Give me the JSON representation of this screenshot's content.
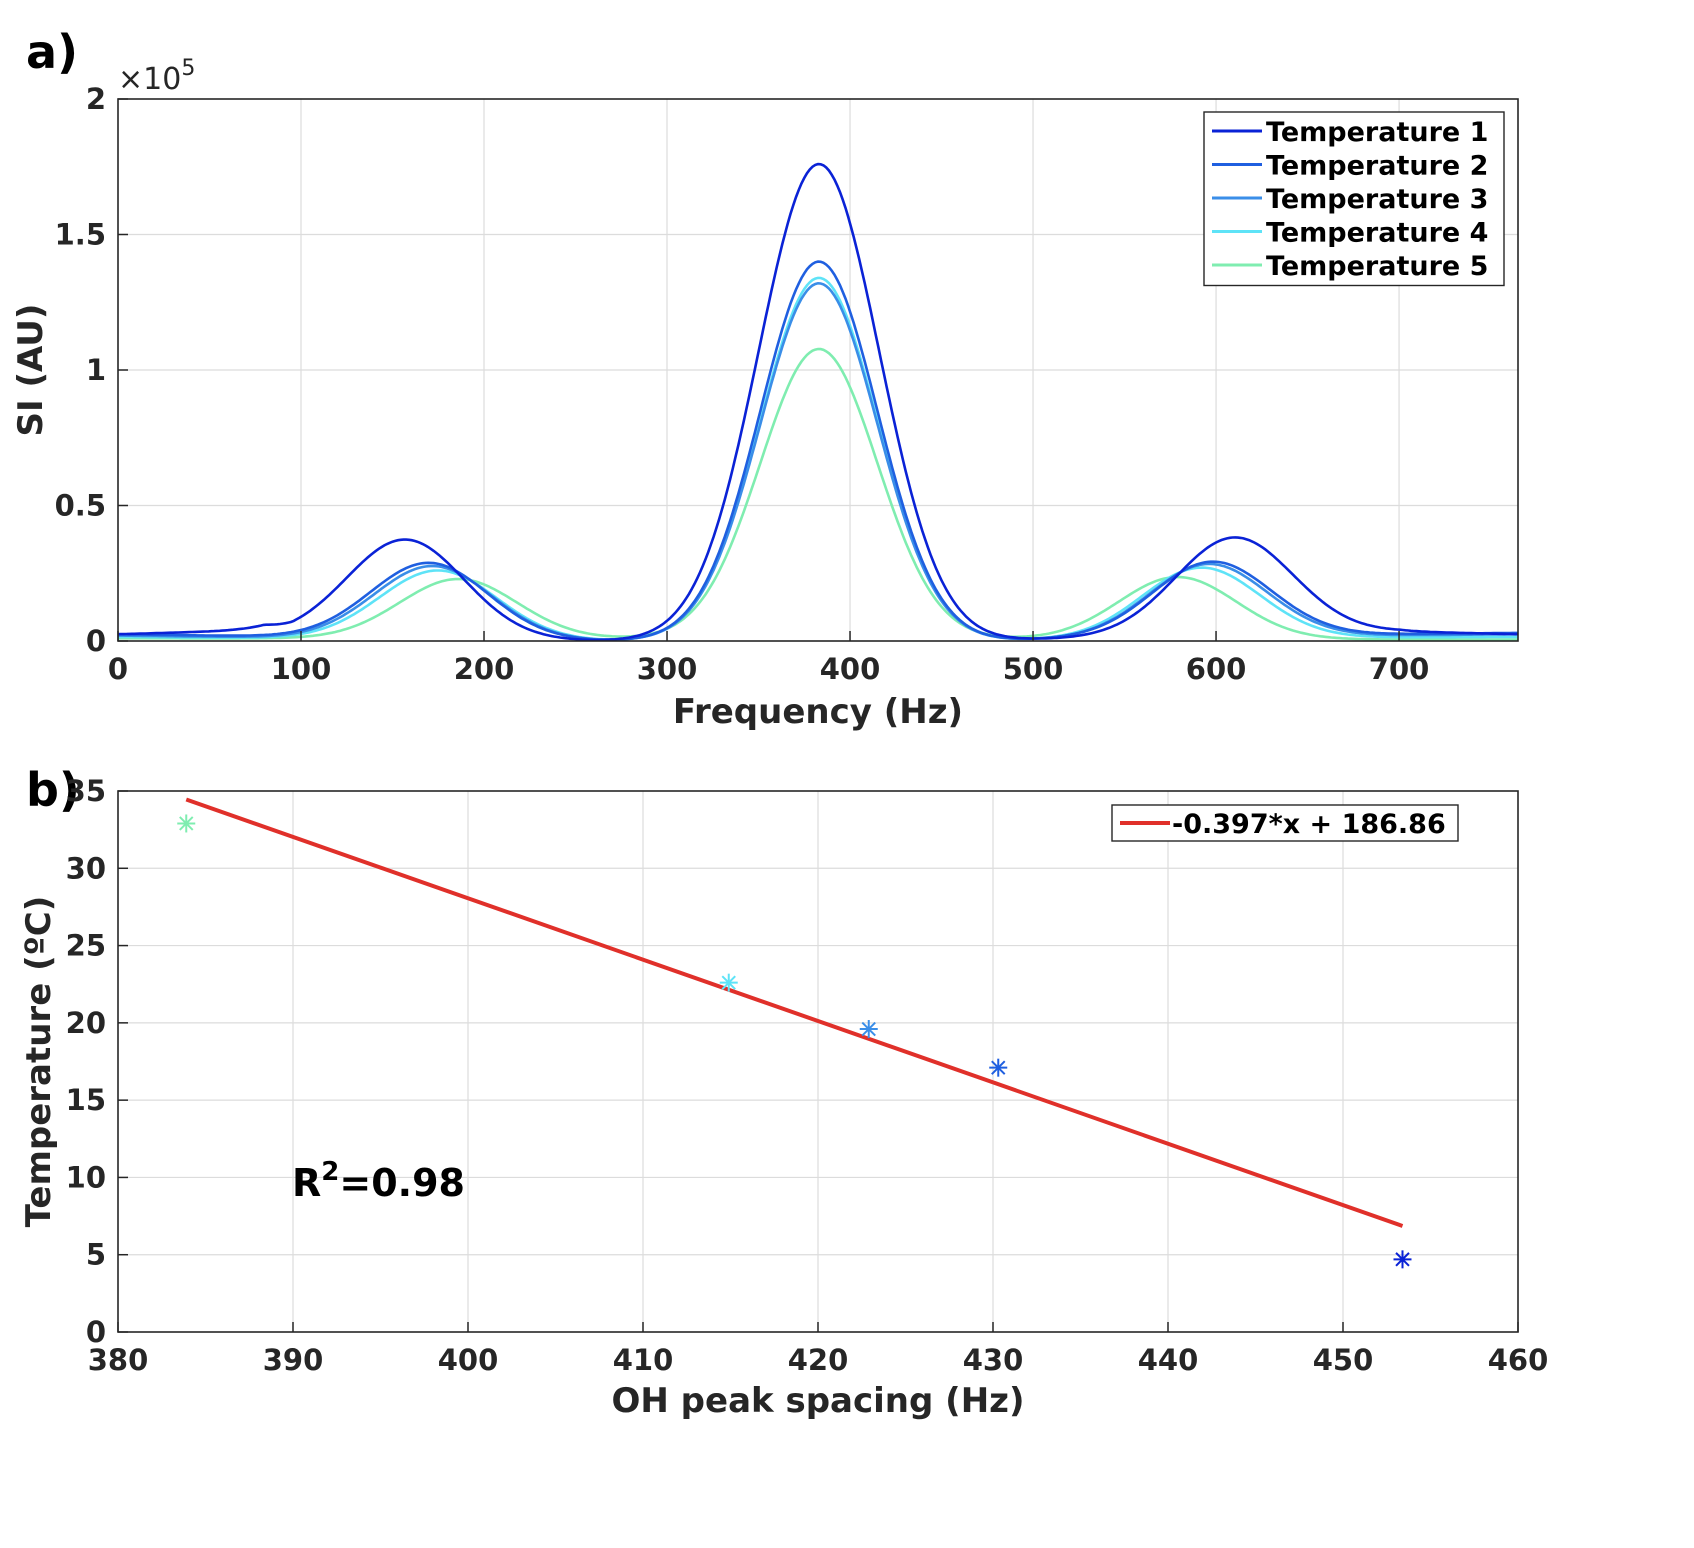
{
  "panels": {
    "a_label": "a)",
    "b_label": "b)"
  },
  "chart_data": [
    {
      "type": "line",
      "xlabel": "Frequency (Hz)",
      "ylabel": "SI (AU)",
      "y_multiplier_label": "×10",
      "y_multiplier_exp": "5",
      "xlim": [
        0,
        765
      ],
      "ylim": [
        0,
        200000
      ],
      "xticks": [
        0,
        100,
        200,
        300,
        400,
        500,
        600,
        700
      ],
      "xtick_labels": [
        "0",
        "100",
        "200",
        "300",
        "400",
        "500",
        "600",
        "700"
      ],
      "yticks": [
        0,
        50000,
        100000,
        150000,
        200000
      ],
      "ytick_labels": [
        "0",
        "0.5",
        "1",
        "1.5",
        "2"
      ],
      "grid": true,
      "legend_position": "top-right",
      "series": [
        {
          "name": "Temperature 1",
          "color": "#0a22d6",
          "peaks": [
            {
              "center": 157,
              "height": 36500,
              "sigma": 32
            },
            {
              "center": 383,
              "height": 176000,
              "sigma": 33
            },
            {
              "center": 610,
              "height": 36000,
              "sigma": 32
            }
          ],
          "baseline": [
            [
              0,
              2500
            ],
            [
              80,
              4000
            ],
            [
              95,
              1500
            ],
            [
              260,
              0
            ],
            [
              300,
              0
            ],
            [
              470,
              0
            ],
            [
              560,
              1500
            ],
            [
              700,
              3500
            ],
            [
              765,
              2500
            ]
          ]
        },
        {
          "name": "Temperature 2",
          "color": "#1f5fe0",
          "peaks": [
            {
              "center": 170,
              "height": 28000,
              "sigma": 32
            },
            {
              "center": 383,
              "height": 140000,
              "sigma": 32
            },
            {
              "center": 598,
              "height": 27500,
              "sigma": 32
            }
          ],
          "baseline": [
            [
              0,
              2500
            ],
            [
              100,
              1500
            ],
            [
              260,
              0
            ],
            [
              300,
              0
            ],
            [
              470,
              0
            ],
            [
              560,
              1500
            ],
            [
              765,
              3000
            ]
          ]
        },
        {
          "name": "Temperature 3",
          "color": "#3a8ee8",
          "peaks": [
            {
              "center": 172,
              "height": 27000,
              "sigma": 32
            },
            {
              "center": 383,
              "height": 132000,
              "sigma": 32
            },
            {
              "center": 596,
              "height": 27000,
              "sigma": 32
            }
          ],
          "baseline": [
            [
              0,
              2000
            ],
            [
              100,
              1200
            ],
            [
              260,
              0
            ],
            [
              300,
              0
            ],
            [
              470,
              0
            ],
            [
              560,
              1200
            ],
            [
              765,
              2500
            ]
          ]
        },
        {
          "name": "Temperature 4",
          "color": "#5ee3f7",
          "peaks": [
            {
              "center": 175,
              "height": 25500,
              "sigma": 32
            },
            {
              "center": 383,
              "height": 134000,
              "sigma": 32
            },
            {
              "center": 592,
              "height": 26000,
              "sigma": 32
            }
          ],
          "baseline": [
            [
              0,
              1500
            ],
            [
              100,
              1000
            ],
            [
              260,
              0
            ],
            [
              300,
              0
            ],
            [
              470,
              0
            ],
            [
              560,
              1000
            ],
            [
              765,
              1500
            ]
          ]
        },
        {
          "name": "Temperature 5",
          "color": "#7fedb0",
          "peaks": [
            {
              "center": 186,
              "height": 22000,
              "sigma": 32
            },
            {
              "center": 383,
              "height": 107000,
              "sigma": 32
            },
            {
              "center": 579,
              "height": 23000,
              "sigma": 32
            }
          ],
          "baseline": [
            [
              0,
              1000
            ],
            [
              765,
              500
            ]
          ]
        }
      ]
    },
    {
      "type": "scatter",
      "xlabel": "OH peak spacing (Hz)",
      "ylabel": "Temperature (ºC)",
      "xlim": [
        380,
        460
      ],
      "ylim": [
        0,
        35
      ],
      "xticks": [
        380,
        390,
        400,
        410,
        420,
        430,
        440,
        450,
        460
      ],
      "xtick_labels": [
        "380",
        "390",
        "400",
        "410",
        "420",
        "430",
        "440",
        "450",
        "460"
      ],
      "yticks": [
        0,
        5,
        10,
        15,
        20,
        25,
        30,
        35
      ],
      "ytick_labels": [
        "0",
        "5",
        "10",
        "15",
        "20",
        "25",
        "30",
        "35"
      ],
      "grid": true,
      "legend_position": "top-right",
      "points": [
        {
          "x": 383.9,
          "y": 32.9,
          "color": "#7fedb0"
        },
        {
          "x": 414.9,
          "y": 22.6,
          "color": "#5ee3f7"
        },
        {
          "x": 422.9,
          "y": 19.6,
          "color": "#3a8ee8"
        },
        {
          "x": 430.3,
          "y": 17.1,
          "color": "#1f5fe0"
        },
        {
          "x": 453.4,
          "y": 4.7,
          "color": "#0a22d6"
        }
      ],
      "fit": {
        "label": "-0.397*x + 186.86",
        "slope": -0.397,
        "intercept": 186.86,
        "x_range": [
          383.9,
          453.4
        ],
        "color": "#e0302a"
      },
      "annotation": {
        "text": "R",
        "sup": "2",
        "suffix": "=0.98"
      }
    }
  ]
}
